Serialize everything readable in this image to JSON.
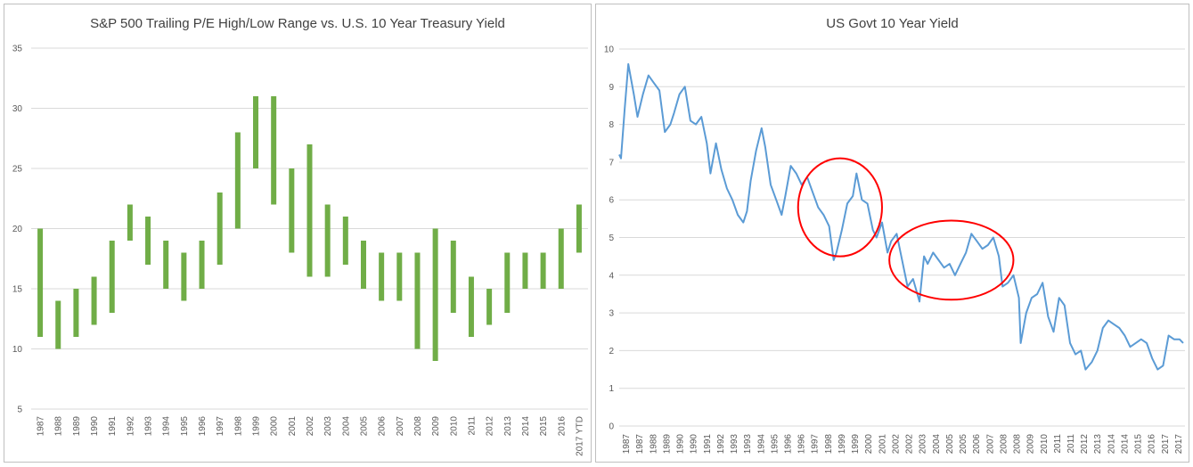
{
  "chart_data": [
    {
      "type": "bar",
      "subtype": "floating-range",
      "title": "S&P 500 Trailing P/E High/Low Range vs. U.S. 10 Year Treasury Yield",
      "xlabel": "",
      "ylabel": "",
      "ylim": [
        5,
        35
      ],
      "yticks": [
        5,
        10,
        15,
        20,
        25,
        30,
        35
      ],
      "grid": true,
      "legend": "none",
      "color": "#70ad47",
      "categories": [
        "1987",
        "1988",
        "1989",
        "1990",
        "1991",
        "1992",
        "1993",
        "1994",
        "1995",
        "1996",
        "1997",
        "1998",
        "1999",
        "2000",
        "2001",
        "2002",
        "2003",
        "2004",
        "2005",
        "2006",
        "2007",
        "2008",
        "2009",
        "2010",
        "2011",
        "2012",
        "2013",
        "2014",
        "2015",
        "2016",
        "2017 YTD"
      ],
      "low": [
        11,
        10,
        11,
        12,
        13,
        19,
        17,
        15,
        14,
        15,
        17,
        20,
        25,
        22,
        18,
        16,
        16,
        17,
        15,
        14,
        14,
        10,
        9,
        13,
        11,
        12,
        13,
        15,
        15,
        15,
        18
      ],
      "high": [
        20,
        14,
        15,
        16,
        19,
        22,
        21,
        19,
        18,
        19,
        23,
        28,
        31,
        31,
        25,
        27,
        22,
        21,
        19,
        18,
        18,
        18,
        20,
        19,
        16,
        15,
        18,
        18,
        18,
        20,
        22
      ]
    },
    {
      "type": "line",
      "title": "US Govt 10 Year Yield",
      "xlabel": "",
      "ylabel": "",
      "ylim": [
        0,
        10
      ],
      "yticks": [
        0,
        1,
        2,
        3,
        4,
        5,
        6,
        7,
        8,
        9,
        10
      ],
      "grid": true,
      "legend": "none",
      "color": "#5b9bd5",
      "xtick_labels": [
        "1987",
        "1987",
        "1988",
        "1989",
        "1990",
        "1990",
        "1991",
        "1992",
        "1993",
        "1993",
        "1994",
        "1995",
        "1996",
        "1996",
        "1997",
        "1998",
        "1999",
        "1999",
        "2000",
        "2001",
        "2002",
        "2002",
        "2003",
        "2004",
        "2005",
        "2005",
        "2006",
        "2007",
        "2008",
        "2008",
        "2009",
        "2010",
        "2011",
        "2011",
        "2012",
        "2013",
        "2014",
        "2014",
        "2015",
        "2016",
        "2017",
        "2017"
      ],
      "x": [
        1987.0,
        1987.1,
        1987.3,
        1987.5,
        1987.8,
        1988.0,
        1988.3,
        1988.6,
        1988.9,
        1989.2,
        1989.5,
        1989.8,
        1990.0,
        1990.3,
        1990.6,
        1990.9,
        1991.2,
        1991.5,
        1991.8,
        1992.0,
        1992.3,
        1992.6,
        1992.9,
        1993.2,
        1993.5,
        1993.8,
        1994.0,
        1994.2,
        1994.5,
        1994.8,
        1995.0,
        1995.3,
        1995.6,
        1995.9,
        1996.1,
        1996.4,
        1996.7,
        1997.0,
        1997.3,
        1997.6,
        1997.9,
        1998.2,
        1998.5,
        1998.75,
        1998.9,
        1999.2,
        1999.5,
        1999.8,
        2000.0,
        2000.3,
        2000.6,
        2000.9,
        2001.1,
        2001.4,
        2001.7,
        2001.9,
        2002.2,
        2002.5,
        2002.8,
        2003.1,
        2003.45,
        2003.7,
        2003.9,
        2004.2,
        2004.5,
        2004.8,
        2005.1,
        2005.4,
        2005.7,
        2006.0,
        2006.3,
        2006.6,
        2006.9,
        2007.2,
        2007.5,
        2007.8,
        2008.0,
        2008.3,
        2008.6,
        2008.9,
        2009.0,
        2009.3,
        2009.6,
        2009.9,
        2010.2,
        2010.5,
        2010.8,
        2011.1,
        2011.4,
        2011.7,
        2012.0,
        2012.3,
        2012.55,
        2012.9,
        2013.2,
        2013.5,
        2013.8,
        2014.1,
        2014.4,
        2014.7,
        2015.0,
        2015.3,
        2015.6,
        2015.9,
        2016.2,
        2016.5,
        2016.8,
        2017.1,
        2017.4,
        2017.7,
        2017.9
      ],
      "y": [
        7.2,
        7.1,
        8.4,
        9.6,
        8.8,
        8.2,
        8.8,
        9.3,
        9.1,
        8.9,
        7.8,
        8.0,
        8.3,
        8.8,
        9.0,
        8.1,
        8.0,
        8.2,
        7.5,
        6.7,
        7.5,
        6.8,
        6.3,
        6.0,
        5.6,
        5.4,
        5.7,
        6.5,
        7.3,
        7.9,
        7.4,
        6.4,
        6.0,
        5.6,
        6.1,
        6.9,
        6.7,
        6.4,
        6.6,
        6.2,
        5.8,
        5.6,
        5.3,
        4.4,
        4.6,
        5.2,
        5.9,
        6.1,
        6.7,
        6.0,
        5.9,
        5.2,
        5.0,
        5.4,
        4.6,
        4.9,
        5.1,
        4.4,
        3.7,
        3.9,
        3.3,
        4.5,
        4.3,
        4.6,
        4.4,
        4.2,
        4.3,
        4.0,
        4.3,
        4.6,
        5.1,
        4.9,
        4.7,
        4.8,
        5.0,
        4.5,
        3.7,
        3.8,
        4.0,
        3.4,
        2.2,
        3.0,
        3.4,
        3.5,
        3.8,
        2.9,
        2.5,
        3.4,
        3.2,
        2.2,
        1.9,
        2.0,
        1.5,
        1.7,
        2.0,
        2.6,
        2.8,
        2.7,
        2.6,
        2.4,
        2.1,
        2.2,
        2.3,
        2.2,
        1.8,
        1.5,
        1.6,
        2.4,
        2.3,
        2.3,
        2.2
      ]
    }
  ],
  "annotations": {
    "ellipses": [
      {
        "shape": "ellipse",
        "color": "#ff0000",
        "x_center": 1999.1,
        "y_center": 5.8,
        "x_halfwidth": 2.3,
        "y_halfwidth": 1.3
      },
      {
        "shape": "ellipse",
        "color": "#ff0000",
        "x_center": 2005.2,
        "y_center": 4.4,
        "x_halfwidth": 3.4,
        "y_halfwidth": 1.05
      }
    ]
  }
}
